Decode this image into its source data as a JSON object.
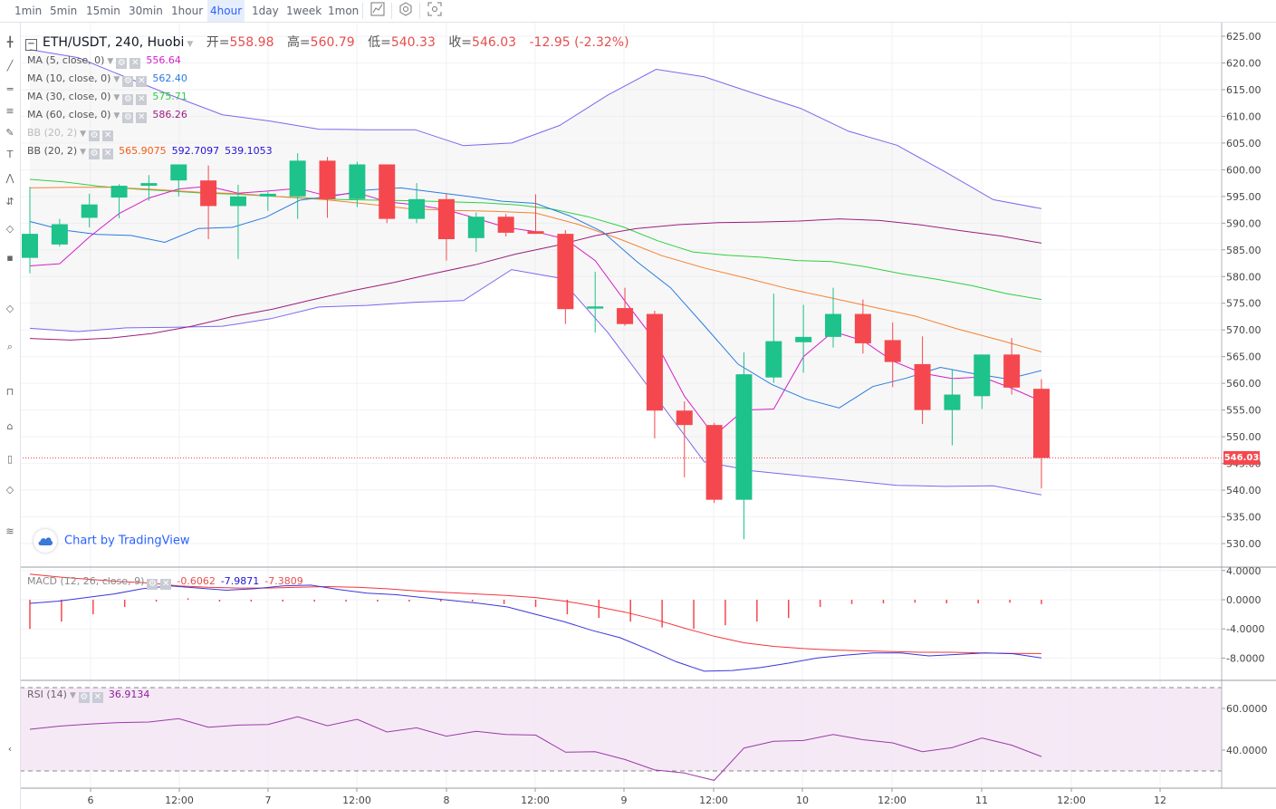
{
  "toolbar": {
    "timeframes": [
      "1min",
      "5min",
      "15min",
      "30min",
      "1hour",
      "4hour",
      "1day",
      "1week",
      "1mon"
    ],
    "active_index": 5
  },
  "legend": {
    "symbol": "ETH/USDT, 240, Huobi",
    "open_label": "开=",
    "open": "558.98",
    "high_label": "高=",
    "high": "560.79",
    "low_label": "低=",
    "low": "540.33",
    "close_label": "收=",
    "close": "546.03",
    "change": "-12.95 (-2.32%)",
    "ma5": {
      "name": "MA (5, close, 0)",
      "value": "556.64",
      "color": "#d51fc8"
    },
    "ma10": {
      "name": "MA (10, close, 0)",
      "value": "562.40",
      "color": "#2a7be0"
    },
    "ma30": {
      "name": "MA (30, close, 0)",
      "value": "575.71",
      "color": "#2ed03f"
    },
    "ma60": {
      "name": "MA (60, close, 0)",
      "value": "586.26",
      "color": "#9c1e7d"
    },
    "bb1": {
      "name": "BB (20, 2)"
    },
    "bb2": {
      "name": "BB (20, 2)",
      "mid": "565.9075",
      "upper": "592.7097",
      "lower": "539.1053"
    },
    "macd": {
      "name": "MACD (12, 26, close, 9)",
      "hist": "-0.6062",
      "macd": "-7.9871",
      "signal": "-7.3809"
    },
    "rsi": {
      "name": "RSI (14)",
      "value": "36.9134"
    }
  },
  "branding": "Chart by TradingView",
  "current_price_label": "546.03",
  "colors": {
    "up": "#26a69a",
    "up_fill": "#1ec28b",
    "down": "#f5484e",
    "bb_band": "#7b68ee",
    "ema_orange": "#f58133"
  },
  "chart_data": [
    {
      "type": "candlestick",
      "x_labels": [
        "6",
        "12:00",
        "7",
        "12:00",
        "8",
        "12:00",
        "9",
        "12:00",
        "10",
        "12:00",
        "11",
        "12:00",
        "12"
      ],
      "y_ticks": [
        "625.00",
        "620.00",
        "615.00",
        "610.00",
        "605.00",
        "600.00",
        "595.00",
        "590.00",
        "585.00",
        "580.00",
        "575.00",
        "570.00",
        "565.00",
        "560.00",
        "555.00",
        "550.00",
        "545.00",
        "540.00",
        "535.00",
        "530.00"
      ],
      "ylim": [
        527.5,
        627.0
      ],
      "candles": [
        {
          "o": 583.5,
          "h": 596.8,
          "l": 580.6,
          "c": 588.0
        },
        {
          "o": 586.0,
          "h": 590.8,
          "l": 585.6,
          "c": 589.8
        },
        {
          "o": 591.0,
          "h": 595.5,
          "l": 589.2,
          "c": 593.5
        },
        {
          "o": 594.8,
          "h": 597.3,
          "l": 590.9,
          "c": 597.0
        },
        {
          "o": 597.0,
          "h": 599.0,
          "l": 594.2,
          "c": 597.5
        },
        {
          "o": 598.0,
          "h": 600.5,
          "l": 595.0,
          "c": 601.0
        },
        {
          "o": 598.0,
          "h": 600.8,
          "l": 587.0,
          "c": 593.2
        },
        {
          "o": 593.2,
          "h": 597.2,
          "l": 583.3,
          "c": 595.0
        },
        {
          "o": 595.0,
          "h": 596.0,
          "l": 592.3,
          "c": 595.5
        },
        {
          "o": 595.0,
          "h": 603.1,
          "l": 590.8,
          "c": 601.7
        },
        {
          "o": 601.7,
          "h": 602.4,
          "l": 591.0,
          "c": 594.5
        },
        {
          "o": 594.5,
          "h": 601.5,
          "l": 593.0,
          "c": 601.0
        },
        {
          "o": 601.0,
          "h": 601.0,
          "l": 590.0,
          "c": 590.8
        },
        {
          "o": 590.8,
          "h": 597.5,
          "l": 590.0,
          "c": 594.5
        },
        {
          "o": 594.5,
          "h": 595.5,
          "l": 583.0,
          "c": 587.0
        },
        {
          "o": 587.2,
          "h": 592.0,
          "l": 584.6,
          "c": 591.2
        },
        {
          "o": 591.2,
          "h": 591.7,
          "l": 587.5,
          "c": 588.2
        },
        {
          "o": 588.5,
          "h": 595.4,
          "l": 588.0,
          "c": 588.0
        },
        {
          "o": 588.0,
          "h": 588.7,
          "l": 571.1,
          "c": 573.9
        },
        {
          "o": 574.0,
          "h": 580.9,
          "l": 569.5,
          "c": 574.4
        },
        {
          "o": 574.1,
          "h": 577.9,
          "l": 570.8,
          "c": 571.1
        },
        {
          "o": 573.0,
          "h": 573.6,
          "l": 549.7,
          "c": 554.9
        },
        {
          "o": 554.9,
          "h": 556.6,
          "l": 542.4,
          "c": 552.2
        },
        {
          "o": 552.2,
          "h": 552.6,
          "l": 537.6,
          "c": 538.2
        },
        {
          "o": 538.2,
          "h": 565.8,
          "l": 530.8,
          "c": 561.7
        },
        {
          "o": 561.1,
          "h": 576.8,
          "l": 560.1,
          "c": 567.9
        },
        {
          "o": 567.7,
          "h": 574.7,
          "l": 562.0,
          "c": 568.7
        },
        {
          "o": 568.7,
          "h": 577.9,
          "l": 566.7,
          "c": 573.0
        },
        {
          "o": 573.0,
          "h": 575.7,
          "l": 565.6,
          "c": 567.5
        },
        {
          "o": 568.1,
          "h": 571.4,
          "l": 559.3,
          "c": 564.0
        },
        {
          "o": 563.6,
          "h": 568.8,
          "l": 552.4,
          "c": 555.0
        },
        {
          "o": 555.0,
          "h": 562.7,
          "l": 548.4,
          "c": 557.9
        },
        {
          "o": 557.6,
          "h": 565.2,
          "l": 555.2,
          "c": 565.4
        },
        {
          "o": 565.4,
          "h": 568.5,
          "l": 557.9,
          "c": 559.2
        },
        {
          "o": 558.98,
          "h": 560.79,
          "l": 540.33,
          "c": 546.03
        }
      ],
      "ma5": [
        582.0,
        582.4,
        587.4,
        591.8,
        594.7,
        596.4,
        596.9,
        595.6,
        596.0,
        596.5,
        595.1,
        595.7,
        594.0,
        593.4,
        592.5,
        590.9,
        589.2,
        588.4,
        587.0,
        583.0,
        575.4,
        568.1,
        557.6,
        550.2,
        555.0,
        555.2,
        565.0,
        569.7,
        568.0,
        564.2,
        561.9,
        560.9,
        561.2,
        559.1,
        556.64
      ],
      "ma10": [
        590.3,
        588.7,
        587.9,
        587.7,
        586.4,
        589.0,
        589.2,
        591.1,
        594.3,
        595.1,
        596.2,
        596.6,
        595.8,
        595.0,
        594.1,
        593.7,
        591.4,
        588.3,
        582.8,
        577.9,
        570.8,
        563.6,
        559.8,
        557.1,
        555.4,
        559.4,
        561.0,
        563.0,
        561.8,
        560.8,
        562.4
      ],
      "ma30": [
        598.2,
        597.7,
        596.9,
        596.4,
        596.0,
        595.6,
        595.4,
        595.0,
        594.7,
        594.4,
        594.3,
        594.2,
        594.0,
        593.8,
        593.4,
        592.6,
        591.2,
        589.3,
        586.7,
        584.6,
        584.0,
        583.6,
        583.0,
        582.8,
        581.8,
        580.5,
        579.5,
        578.3,
        576.8,
        575.71
      ],
      "ema": [
        596.6,
        596.7,
        596.7,
        596.3,
        595.8,
        595.5,
        594.9,
        594.4,
        593.6,
        592.7,
        592.4,
        592.2,
        591.9,
        589.8,
        587.0,
        583.9,
        581.6,
        579.7,
        577.7,
        576.0,
        574.3,
        572.6,
        570.2,
        568.1,
        565.9
      ],
      "ma60": [
        568.4,
        568.1,
        568.5,
        569.3,
        570.7,
        572.5,
        573.9,
        575.7,
        577.4,
        578.9,
        580.6,
        582.2,
        584.2,
        585.8,
        587.7,
        589.0,
        589.7,
        590.1,
        590.2,
        590.4,
        590.8,
        590.5,
        589.7,
        588.6,
        587.6,
        586.26
      ],
      "bb_upper": [
        622.5,
        621.0,
        617.3,
        613.7,
        610.3,
        609.1,
        607.6,
        607.5,
        607.5,
        604.5,
        605.0,
        608.3,
        614.0,
        618.8,
        617.4,
        614.4,
        611.5,
        607.2,
        604.6,
        599.6,
        594.4,
        592.71
      ],
      "bb_lower": [
        570.3,
        569.7,
        570.4,
        570.5,
        570.7,
        572.1,
        574.3,
        574.6,
        575.2,
        575.5,
        581.3,
        579.7,
        569.5,
        557.4,
        545.3,
        543.6,
        542.7,
        541.8,
        540.9,
        540.7,
        540.8,
        539.11
      ]
    },
    {
      "type": "bar",
      "name": "MACD (12, 26, close, 9)",
      "y_ticks": [
        "4.0000",
        "0.0000",
        "-4.0000",
        "-8.0000"
      ],
      "ylim": [
        -10.5,
        4.2
      ],
      "macd": [
        -0.5,
        -0.2,
        0.3,
        0.8,
        1.5,
        1.9,
        1.6,
        1.3,
        1.5,
        1.9,
        2.0,
        1.4,
        0.9,
        0.7,
        0.3,
        -0.1,
        -0.5,
        -1.0,
        -2.0,
        -3.0,
        -4.2,
        -5.2,
        -6.8,
        -8.5,
        -9.8,
        -9.7,
        -9.3,
        -8.7,
        -8.0,
        -7.6,
        -7.3,
        -7.3,
        -7.7,
        -7.5,
        -7.3,
        -7.4,
        -7.9871
      ],
      "signal": [
        3.5,
        3.1,
        2.8,
        2.5,
        2.3,
        1.9,
        1.7,
        1.6,
        1.6,
        1.7,
        1.8,
        1.7,
        1.5,
        1.2,
        1.0,
        0.8,
        0.6,
        0.3,
        -0.2,
        -0.9,
        -1.7,
        -2.7,
        -3.9,
        -5.0,
        -5.9,
        -6.4,
        -6.7,
        -6.9,
        -7.0,
        -7.1,
        -7.2,
        -7.2,
        -7.3,
        -7.35,
        -7.3809
      ],
      "histogram": [
        -4.0,
        -3.0,
        -2.0,
        -1.0,
        0,
        0.2,
        0,
        0,
        -0.1,
        0,
        0,
        0.1,
        0,
        0,
        0,
        -0.6,
        -1.0,
        -2.0,
        -2.5,
        -3.0,
        -3.8,
        -4.0,
        -3.5,
        -3.0,
        -2.5,
        -1.0,
        -0.6,
        -0.5,
        -0.4,
        -0.5,
        -0.5,
        -0.4,
        -0.6062
      ]
    },
    {
      "type": "line",
      "name": "RSI (14)",
      "y_ticks": [
        "60.0000",
        "40.0000"
      ],
      "ylim": [
        20,
        72
      ],
      "band": [
        30,
        70
      ],
      "rsi": [
        50.0,
        51.5,
        52.5,
        53.2,
        53.5,
        55.1,
        51.0,
        52.0,
        52.3,
        56.0,
        51.7,
        54.8,
        48.7,
        50.7,
        46.7,
        49.0,
        47.5,
        47.2,
        39.0,
        39.2,
        35.5,
        30.5,
        29.0,
        25.5,
        41.0,
        44.2,
        44.6,
        47.5,
        45.0,
        43.5,
        39.2,
        41.2,
        45.8,
        42.4,
        36.9134
      ]
    }
  ]
}
